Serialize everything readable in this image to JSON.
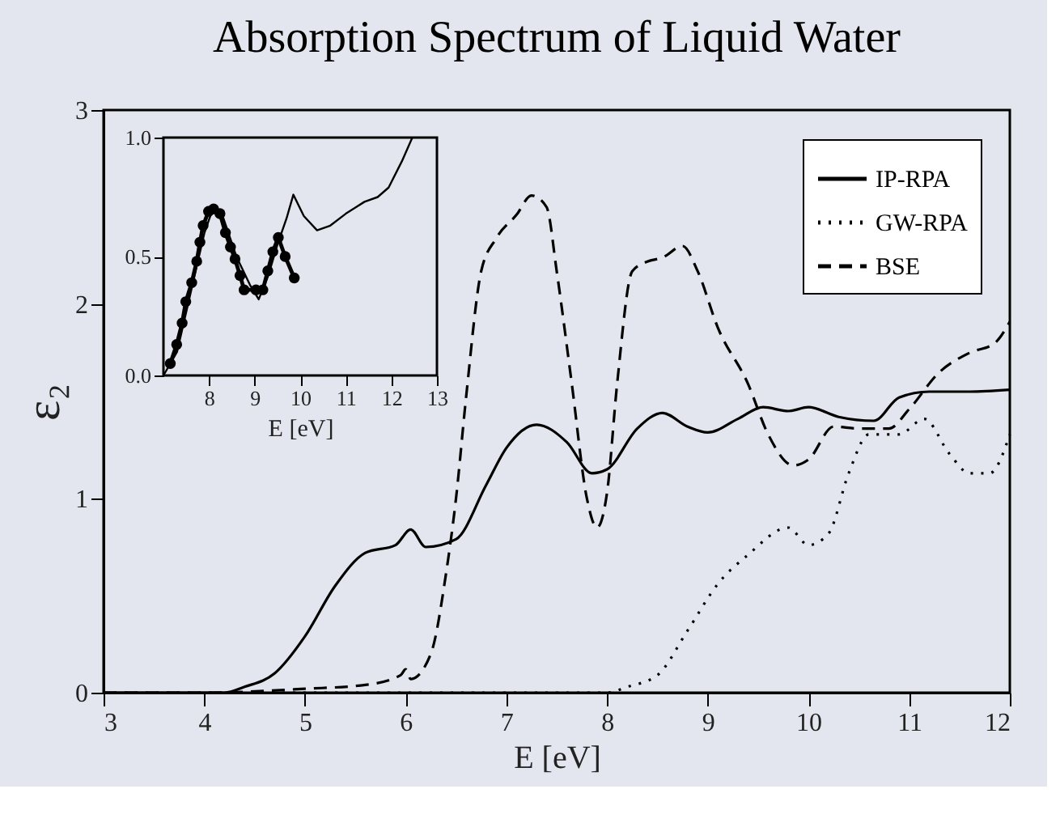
{
  "chart_data": [
    {
      "type": "line",
      "title": "Absorption Spectrum of Liquid Water",
      "xlabel": "E [eV]",
      "ylabel": "ε₂",
      "xlim": [
        3,
        12
      ],
      "xticks": [
        3,
        4,
        5,
        6,
        7,
        8,
        9,
        10,
        11,
        12
      ],
      "ylim": [
        0,
        3
      ],
      "yticks": [
        0,
        1,
        2,
        3
      ],
      "grid": false,
      "legend": "top right",
      "series": [
        {
          "name": "IP-RPA",
          "color": "#000000",
          "line_style": "solid",
          "x": [
            3,
            4.2,
            4.4,
            4.7,
            5.0,
            5.3,
            5.6,
            5.9,
            6.05,
            6.2,
            6.5,
            6.8,
            7.0,
            7.3,
            7.6,
            7.85,
            8.0,
            8.3,
            8.55,
            8.8,
            9.0,
            9.3,
            9.55,
            9.8,
            10.0,
            10.3,
            10.65,
            10.9,
            11.2,
            11.6,
            12
          ],
          "values": [
            0,
            0,
            0.03,
            0.1,
            0.29,
            0.55,
            0.72,
            0.76,
            0.84,
            0.75,
            0.79,
            1.07,
            1.26,
            1.38,
            1.29,
            1.13,
            1.15,
            1.36,
            1.44,
            1.37,
            1.34,
            1.41,
            1.47,
            1.45,
            1.47,
            1.42,
            1.4,
            1.52,
            1.55,
            1.55,
            1.56
          ]
        },
        {
          "name": "GW-RPA",
          "color": "#000000",
          "line_style": "dotted",
          "x": [
            3,
            8.0,
            8.2,
            8.5,
            8.8,
            9.1,
            9.4,
            9.8,
            10.0,
            10.2,
            10.4,
            10.6,
            10.9,
            11.15,
            11.4,
            11.6,
            11.8,
            12.0
          ],
          "values": [
            0,
            0,
            0.03,
            0.09,
            0.32,
            0.56,
            0.71,
            0.85,
            0.76,
            0.82,
            1.13,
            1.33,
            1.33,
            1.41,
            1.23,
            1.13,
            1.13,
            1.33
          ]
        },
        {
          "name": "BSE",
          "color": "#000000",
          "line_style": "dashed",
          "x": [
            3,
            4,
            5,
            5.6,
            5.95,
            6.0,
            6.05,
            6.25,
            6.4,
            6.5,
            6.6,
            6.75,
            6.9,
            7.1,
            7.25,
            7.4,
            7.5,
            7.65,
            7.8,
            7.9,
            8.0,
            8.1,
            8.25,
            8.4,
            8.55,
            8.75,
            8.9,
            9.1,
            9.4,
            9.6,
            9.85,
            10.0,
            10.25,
            10.5,
            10.8,
            11.0,
            11.3,
            11.6,
            11.85,
            12
          ],
          "values": [
            0,
            0,
            0.02,
            0.04,
            0.09,
            0.12,
            0.07,
            0.2,
            0.61,
            1.0,
            1.52,
            2.17,
            2.34,
            2.46,
            2.56,
            2.5,
            2.17,
            1.59,
            1.0,
            0.85,
            1.03,
            1.59,
            2.17,
            2.22,
            2.24,
            2.3,
            2.17,
            1.88,
            1.59,
            1.33,
            1.17,
            1.2,
            1.37,
            1.36,
            1.36,
            1.46,
            1.65,
            1.75,
            1.8,
            1.91
          ]
        }
      ]
    },
    {
      "type": "line",
      "xlabel": "E [eV]",
      "xlim": [
        7,
        13
      ],
      "xticks": [
        8,
        9,
        10,
        11,
        12,
        13
      ],
      "ylim": [
        0,
        1
      ],
      "yticks": [
        {
          "value": 0,
          "label": "0.0"
        },
        {
          "value": 0.5,
          "label": "0.5"
        },
        {
          "value": 1,
          "label": "1.0"
        }
      ],
      "grid": false,
      "series": [
        {
          "color": "#000000",
          "marker": "circle",
          "x": [
            7.15,
            7.29,
            7.41,
            7.49,
            7.62,
            7.73,
            7.8,
            7.87,
            7.99,
            8.1,
            8.24,
            8.36,
            8.47,
            8.57,
            8.68,
            8.77,
            9.03,
            9.18,
            9.29,
            9.4,
            9.52,
            9.67,
            9.87
          ],
          "values": [
            0.05,
            0.13,
            0.22,
            0.31,
            0.39,
            0.48,
            0.56,
            0.63,
            0.69,
            0.7,
            0.68,
            0.6,
            0.54,
            0.49,
            0.42,
            0.36,
            0.36,
            0.36,
            0.44,
            0.52,
            0.58,
            0.5,
            0.41
          ]
        },
        {
          "color": "#000000",
          "marker": "none",
          "x": [
            7.0,
            7.3,
            7.6,
            7.9,
            8.1,
            8.3,
            8.6,
            8.9,
            9.09,
            9.3,
            9.5,
            9.7,
            9.85,
            10.08,
            10.37,
            10.66,
            11.0,
            11.41,
            11.7,
            11.94,
            12.23,
            12.46
          ],
          "values": [
            0,
            0.1,
            0.35,
            0.6,
            0.71,
            0.67,
            0.5,
            0.38,
            0.32,
            0.42,
            0.55,
            0.66,
            0.76,
            0.67,
            0.61,
            0.63,
            0.68,
            0.73,
            0.75,
            0.79,
            0.9,
            1.0
          ]
        }
      ]
    }
  ]
}
